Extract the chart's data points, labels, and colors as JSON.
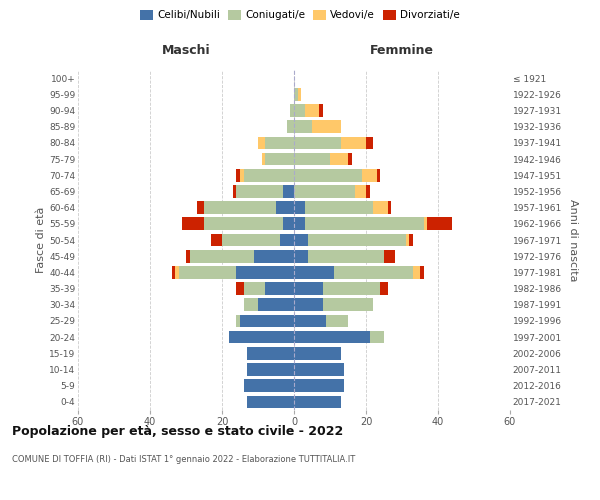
{
  "age_groups": [
    "0-4",
    "5-9",
    "10-14",
    "15-19",
    "20-24",
    "25-29",
    "30-34",
    "35-39",
    "40-44",
    "45-49",
    "50-54",
    "55-59",
    "60-64",
    "65-69",
    "70-74",
    "75-79",
    "80-84",
    "85-89",
    "90-94",
    "95-99",
    "100+"
  ],
  "birth_years": [
    "2017-2021",
    "2012-2016",
    "2007-2011",
    "2002-2006",
    "1997-2001",
    "1992-1996",
    "1987-1991",
    "1982-1986",
    "1977-1981",
    "1972-1976",
    "1967-1971",
    "1962-1966",
    "1957-1961",
    "1952-1956",
    "1947-1951",
    "1942-1946",
    "1937-1941",
    "1932-1936",
    "1927-1931",
    "1922-1926",
    "≤ 1921"
  ],
  "males": {
    "celibi": [
      13,
      14,
      13,
      13,
      18,
      15,
      10,
      8,
      16,
      11,
      4,
      3,
      5,
      3,
      0,
      0,
      0,
      0,
      0,
      0,
      0
    ],
    "coniugati": [
      0,
      0,
      0,
      0,
      0,
      1,
      4,
      6,
      16,
      18,
      16,
      22,
      20,
      13,
      14,
      8,
      8,
      2,
      1,
      0,
      0
    ],
    "vedovi": [
      0,
      0,
      0,
      0,
      0,
      0,
      0,
      0,
      1,
      0,
      0,
      0,
      0,
      0,
      1,
      1,
      2,
      0,
      0,
      0,
      0
    ],
    "divorziati": [
      0,
      0,
      0,
      0,
      0,
      0,
      0,
      2,
      1,
      1,
      3,
      6,
      2,
      1,
      1,
      0,
      0,
      0,
      0,
      0,
      0
    ]
  },
  "females": {
    "nubili": [
      13,
      14,
      14,
      13,
      21,
      9,
      8,
      8,
      11,
      4,
      4,
      3,
      3,
      0,
      0,
      0,
      0,
      0,
      0,
      0,
      0
    ],
    "coniugate": [
      0,
      0,
      0,
      0,
      4,
      6,
      14,
      16,
      22,
      21,
      27,
      33,
      19,
      17,
      19,
      10,
      13,
      5,
      3,
      1,
      0
    ],
    "vedove": [
      0,
      0,
      0,
      0,
      0,
      0,
      0,
      0,
      2,
      0,
      1,
      1,
      4,
      3,
      4,
      5,
      7,
      8,
      4,
      1,
      0
    ],
    "divorziate": [
      0,
      0,
      0,
      0,
      0,
      0,
      0,
      2,
      1,
      3,
      1,
      7,
      1,
      1,
      1,
      1,
      2,
      0,
      1,
      0,
      0
    ]
  },
  "colors": {
    "celibi": "#4472a8",
    "coniugati": "#b5c9a0",
    "vedovi": "#ffc869",
    "divorziati": "#cc2200"
  },
  "title": "Popolazione per età, sesso e stato civile - 2022",
  "subtitle": "COMUNE DI TOFFIA (RI) - Dati ISTAT 1° gennaio 2022 - Elaborazione TUTTITALIA.IT",
  "ylabel_left": "Fasce di età",
  "ylabel_right": "Anni di nascita",
  "xlabel_left": "Maschi",
  "xlabel_right": "Femmine",
  "xlim": 60,
  "background_color": "#ffffff",
  "grid_color": "#cccccc",
  "legend_labels": [
    "Celibi/Nubili",
    "Coniugati/e",
    "Vedovi/e",
    "Divorziati/e"
  ]
}
